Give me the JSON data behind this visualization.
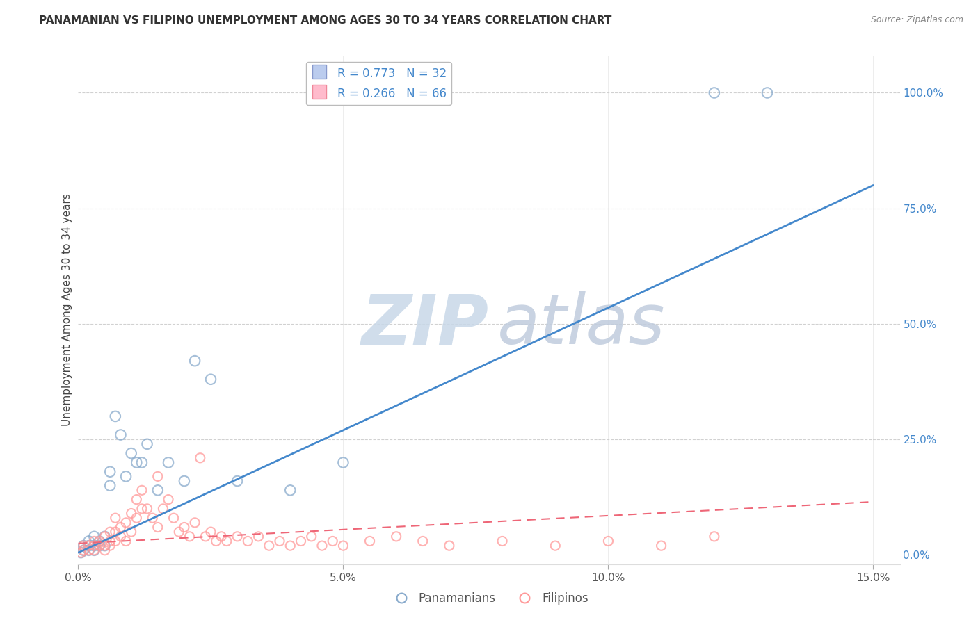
{
  "title": "PANAMANIAN VS FILIPINO UNEMPLOYMENT AMONG AGES 30 TO 34 YEARS CORRELATION CHART",
  "source": "Source: ZipAtlas.com",
  "ylabel": "Unemployment Among Ages 30 to 34 years",
  "xlim": [
    0.0,
    0.155
  ],
  "ylim": [
    -0.02,
    1.08
  ],
  "xticks": [
    0.0,
    0.05,
    0.1,
    0.15
  ],
  "xticklabels": [
    "0.0%",
    "5.0%",
    "10.0%",
    "15.0%"
  ],
  "yticks_right": [
    0.0,
    0.25,
    0.5,
    0.75,
    1.0
  ],
  "yticklabels_right": [
    "0.0%",
    "25.0%",
    "50.0%",
    "75.0%",
    "100.0%"
  ],
  "blue_color": "#88AACC",
  "pink_color": "#FF9999",
  "blue_line_color": "#4488CC",
  "pink_line_color": "#EE6677",
  "blue_scatter_x": [
    0.0005,
    0.001,
    0.001,
    0.002,
    0.002,
    0.002,
    0.003,
    0.003,
    0.003,
    0.004,
    0.004,
    0.005,
    0.005,
    0.006,
    0.006,
    0.007,
    0.008,
    0.009,
    0.01,
    0.011,
    0.012,
    0.013,
    0.015,
    0.017,
    0.02,
    0.022,
    0.025,
    0.03,
    0.04,
    0.05,
    0.12,
    0.13
  ],
  "blue_scatter_y": [
    0.005,
    0.01,
    0.02,
    0.01,
    0.02,
    0.03,
    0.01,
    0.02,
    0.04,
    0.02,
    0.03,
    0.02,
    0.04,
    0.15,
    0.18,
    0.3,
    0.26,
    0.17,
    0.22,
    0.2,
    0.2,
    0.24,
    0.14,
    0.2,
    0.16,
    0.42,
    0.38,
    0.16,
    0.14,
    0.2,
    1.0,
    1.0
  ],
  "pink_scatter_x": [
    0.0005,
    0.001,
    0.001,
    0.002,
    0.002,
    0.003,
    0.003,
    0.003,
    0.004,
    0.004,
    0.005,
    0.005,
    0.005,
    0.006,
    0.006,
    0.006,
    0.007,
    0.007,
    0.007,
    0.008,
    0.008,
    0.009,
    0.009,
    0.01,
    0.01,
    0.011,
    0.011,
    0.012,
    0.012,
    0.013,
    0.014,
    0.015,
    0.015,
    0.016,
    0.017,
    0.018,
    0.019,
    0.02,
    0.021,
    0.022,
    0.023,
    0.024,
    0.025,
    0.026,
    0.027,
    0.028,
    0.03,
    0.032,
    0.034,
    0.036,
    0.038,
    0.04,
    0.042,
    0.044,
    0.046,
    0.048,
    0.05,
    0.055,
    0.06,
    0.065,
    0.07,
    0.08,
    0.09,
    0.1,
    0.11,
    0.12
  ],
  "pink_scatter_y": [
    0.005,
    0.01,
    0.02,
    0.01,
    0.02,
    0.01,
    0.02,
    0.03,
    0.02,
    0.03,
    0.01,
    0.02,
    0.04,
    0.02,
    0.03,
    0.05,
    0.03,
    0.05,
    0.08,
    0.04,
    0.06,
    0.03,
    0.07,
    0.05,
    0.09,
    0.08,
    0.12,
    0.1,
    0.14,
    0.1,
    0.08,
    0.17,
    0.06,
    0.1,
    0.12,
    0.08,
    0.05,
    0.06,
    0.04,
    0.07,
    0.21,
    0.04,
    0.05,
    0.03,
    0.04,
    0.03,
    0.04,
    0.03,
    0.04,
    0.02,
    0.03,
    0.02,
    0.03,
    0.04,
    0.02,
    0.03,
    0.02,
    0.03,
    0.04,
    0.03,
    0.02,
    0.03,
    0.02,
    0.03,
    0.02,
    0.04
  ],
  "blue_line_x": [
    0.0,
    0.15
  ],
  "blue_line_y": [
    0.005,
    0.8
  ],
  "pink_line_x": [
    0.0,
    0.15
  ],
  "pink_line_y": [
    0.025,
    0.115
  ],
  "background_color": "#FFFFFF",
  "grid_color": "#CCCCCC",
  "watermark_zip_color": "#C8D8E8",
  "watermark_atlas_color": "#C0CCDD"
}
